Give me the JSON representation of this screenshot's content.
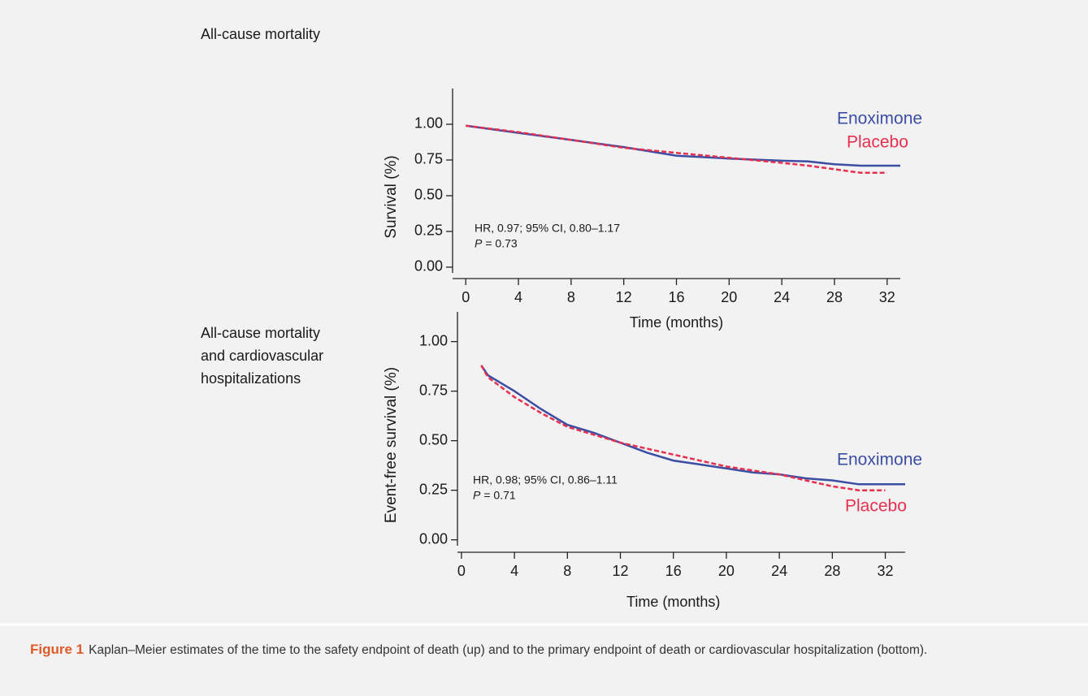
{
  "chart_data": [
    {
      "type": "line",
      "title": "All-cause mortality",
      "ylabel": "Survival (%)",
      "xlabel": "Time (months)",
      "x": [
        0,
        4,
        8,
        12,
        16,
        20,
        24,
        26,
        28,
        30,
        32,
        33
      ],
      "series": [
        {
          "name": "Enoximone",
          "color": "#3b4ea3",
          "line_style": "solid",
          "values": [
            0.99,
            0.94,
            0.89,
            0.84,
            0.78,
            0.76,
            0.745,
            0.74,
            0.72,
            0.71,
            0.71,
            0.71
          ]
        },
        {
          "name": "Placebo",
          "color": "#e6304f",
          "line_style": "dashed",
          "values": [
            0.99,
            0.945,
            0.89,
            0.835,
            0.8,
            0.765,
            0.73,
            0.71,
            0.685,
            0.66,
            0.66,
            null
          ]
        }
      ],
      "annotations": [
        "HR, 0.97; 95% CI, 0.80–1.17",
        "P",
        "= 0.73"
      ],
      "xlim": [
        -1,
        33
      ],
      "ylim": [
        -0.04,
        1.25
      ],
      "xticks": [
        0,
        4,
        8,
        12,
        16,
        20,
        24,
        28,
        32
      ],
      "yticks": [
        {
          "value": 0,
          "label": "0.00"
        },
        {
          "value": 0.25,
          "label": "0.25"
        },
        {
          "value": 0.5,
          "label": "0.50"
        },
        {
          "value": 0.75,
          "label": "0.75"
        },
        {
          "value": 1,
          "label": "1.00"
        }
      ],
      "grid": false
    },
    {
      "type": "line",
      "title": [
        "All-cause mortality",
        "and cardiovascular",
        "hospitalizations"
      ],
      "ylabel": "Event-free survival (%)",
      "xlabel": "Time (months)",
      "x": [
        1.5,
        2,
        4,
        6,
        8,
        10,
        12,
        14,
        16,
        18,
        20,
        22,
        24,
        26,
        28,
        30,
        32,
        33.5
      ],
      "series": [
        {
          "name": "Enoximone",
          "color": "#3b4ea3",
          "line_style": "solid",
          "values": [
            0.88,
            0.83,
            0.75,
            0.66,
            0.58,
            0.54,
            0.49,
            0.44,
            0.4,
            0.38,
            0.36,
            0.34,
            0.33,
            0.31,
            0.3,
            0.28,
            0.28,
            0.28
          ]
        },
        {
          "name": "Placebo",
          "color": "#e6304f",
          "line_style": "dashed",
          "values": [
            0.88,
            0.82,
            0.72,
            0.64,
            0.57,
            0.53,
            0.49,
            0.46,
            0.43,
            0.4,
            0.37,
            0.35,
            0.33,
            0.3,
            0.27,
            0.25,
            0.25,
            null
          ]
        }
      ],
      "annotations": [
        "HR, 0.98; 95% CI, 0.86–1.11",
        "P",
        "= 0.71"
      ],
      "xlim": [
        -0.3,
        33.5
      ],
      "ylim": [
        -0.03,
        1.15
      ],
      "xticks": [
        0,
        4,
        8,
        12,
        16,
        20,
        24,
        28,
        32
      ],
      "yticks": [
        {
          "value": 0,
          "label": "0.00"
        },
        {
          "value": 0.25,
          "label": "0.25"
        },
        {
          "value": 0.5,
          "label": "0.50"
        },
        {
          "value": 0.75,
          "label": "0.75"
        },
        {
          "value": 1,
          "label": "1.00"
        }
      ],
      "grid": false
    }
  ],
  "caption": {
    "label": "Figure 1",
    "text": "Kaplan–Meier estimates of the time to the safety endpoint of death (up) and to the primary endpoint of death or cardiovascular hospitalization (bottom)."
  }
}
